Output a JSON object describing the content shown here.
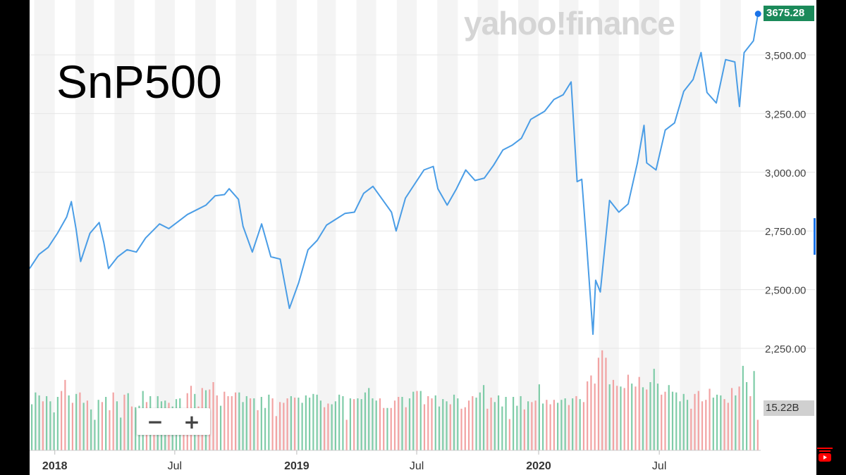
{
  "overlay_label": "SnP500",
  "watermark": "yahoo!finance",
  "zoom": {
    "minus": "−",
    "plus": "+"
  },
  "last_price_badge": "3675.28",
  "volume_badge": "15.22B",
  "colors": {
    "line": "#4a9de6",
    "vol_up": "#7fcca8",
    "vol_down": "#f2a3a3",
    "badge": "#1b8a5a",
    "band": "#f4f4f4"
  },
  "chart_data": {
    "type": "line",
    "series_name": "",
    "x_labels": [
      "2018",
      "Jul",
      "2019",
      "Jul",
      "2020",
      "Jul"
    ],
    "x_label_dates": [
      "2018-01-01",
      "2018-07-01",
      "2019-01-01",
      "2019-07-01",
      "2020-01-01",
      "2020-07-01"
    ],
    "y_ticks": [
      2250,
      2500,
      2750,
      3000,
      3250,
      3500
    ],
    "y_tick_labels": [
      "2,250.00",
      "2,500.00",
      "2,750.00",
      "3,000.00",
      "3,250.00",
      "3,500.00"
    ],
    "ylim": [
      2110,
      3700
    ],
    "x_range": [
      "2017-11-24",
      "2020-12-01"
    ],
    "grid": true,
    "series": [
      {
        "x": [
          "2017-11-24",
          "2017-12-08",
          "2017-12-22",
          "2018-01-05",
          "2018-01-19",
          "2018-01-26",
          "2018-02-02",
          "2018-02-09",
          "2018-02-23",
          "2018-03-09",
          "2018-03-16",
          "2018-03-23",
          "2018-04-06",
          "2018-04-20",
          "2018-05-04",
          "2018-05-18",
          "2018-06-08",
          "2018-06-22",
          "2018-07-06",
          "2018-07-20",
          "2018-08-03",
          "2018-08-17",
          "2018-08-31",
          "2018-09-14",
          "2018-09-21",
          "2018-10-05",
          "2018-10-12",
          "2018-10-26",
          "2018-11-09",
          "2018-11-23",
          "2018-12-07",
          "2018-12-21",
          "2019-01-04",
          "2019-01-18",
          "2019-02-01",
          "2019-02-15",
          "2019-03-01",
          "2019-03-15",
          "2019-03-29",
          "2019-04-12",
          "2019-04-26",
          "2019-05-10",
          "2019-05-24",
          "2019-05-31",
          "2019-06-14",
          "2019-06-28",
          "2019-07-12",
          "2019-07-26",
          "2019-08-02",
          "2019-08-16",
          "2019-08-30",
          "2019-09-13",
          "2019-09-27",
          "2019-10-11",
          "2019-10-25",
          "2019-11-08",
          "2019-11-22",
          "2019-12-06",
          "2019-12-20",
          "2020-01-10",
          "2020-01-24",
          "2020-02-07",
          "2020-02-19",
          "2020-02-28",
          "2020-03-06",
          "2020-03-13",
          "2020-03-23",
          "2020-03-27",
          "2020-04-03",
          "2020-04-17",
          "2020-05-01",
          "2020-05-15",
          "2020-05-29",
          "2020-06-08",
          "2020-06-12",
          "2020-06-26",
          "2020-07-10",
          "2020-07-24",
          "2020-08-07",
          "2020-08-21",
          "2020-09-02",
          "2020-09-11",
          "2020-09-25",
          "2020-10-09",
          "2020-10-23",
          "2020-10-30",
          "2020-11-06",
          "2020-11-20",
          "2020-11-27"
        ],
        "y": [
          2590,
          2650,
          2680,
          2740,
          2810,
          2875,
          2760,
          2620,
          2740,
          2786,
          2700,
          2590,
          2640,
          2670,
          2660,
          2720,
          2780,
          2760,
          2790,
          2820,
          2840,
          2860,
          2900,
          2905,
          2930,
          2885,
          2770,
          2660,
          2780,
          2640,
          2630,
          2420,
          2530,
          2670,
          2710,
          2775,
          2800,
          2825,
          2830,
          2910,
          2940,
          2885,
          2830,
          2750,
          2890,
          2950,
          3010,
          3025,
          2930,
          2860,
          2930,
          3010,
          2965,
          2975,
          3030,
          3095,
          3115,
          3145,
          3225,
          3260,
          3310,
          3330,
          3385,
          2960,
          2970,
          2710,
          2310,
          2540,
          2490,
          2880,
          2830,
          2865,
          3040,
          3200,
          3040,
          3010,
          3180,
          3210,
          3345,
          3395,
          3510,
          3340,
          3295,
          3480,
          3470,
          3280,
          3510,
          3560,
          3675
        ]
      }
    ],
    "volume": {
      "bars": [
        [
          1.1,
          1
        ],
        [
          1.26,
          1
        ],
        [
          1.22,
          1
        ],
        [
          1.14,
          0
        ],
        [
          1.21,
          1
        ],
        [
          1.14,
          1
        ],
        [
          0.99,
          1
        ],
        [
          1.2,
          1
        ],
        [
          1.28,
          0
        ],
        [
          1.43,
          0
        ],
        [
          1.22,
          1
        ],
        [
          1.12,
          0
        ],
        [
          1.24,
          1
        ],
        [
          1.26,
          0
        ],
        [
          1.12,
          1
        ],
        [
          1.15,
          0
        ],
        [
          1.03,
          1
        ],
        [
          0.89,
          1
        ],
        [
          1.16,
          1
        ],
        [
          1.13,
          0
        ],
        [
          1.2,
          1
        ],
        [
          1.02,
          0
        ],
        [
          1.26,
          0
        ],
        [
          1.14,
          1
        ],
        [
          0.92,
          1
        ],
        [
          1.23,
          0
        ],
        [
          1.25,
          1
        ],
        [
          1.07,
          0
        ],
        [
          1.06,
          1
        ],
        [
          1.08,
          1
        ],
        [
          1.28,
          1
        ],
        [
          1.13,
          0
        ],
        [
          1.21,
          1
        ],
        [
          0.94,
          0
        ],
        [
          1.21,
          1
        ],
        [
          1.14,
          1
        ],
        [
          1.15,
          1
        ],
        [
          1.12,
          0
        ],
        [
          1.07,
          1
        ],
        [
          1.17,
          1
        ],
        [
          1.18,
          1
        ],
        [
          0.88,
          0
        ],
        [
          1.25,
          0
        ],
        [
          1.35,
          0
        ],
        [
          1.24,
          1
        ],
        [
          1.07,
          0
        ],
        [
          1.32,
          0
        ],
        [
          1.29,
          1
        ],
        [
          1.3,
          0
        ],
        [
          1.4,
          0
        ],
        [
          1.22,
          0
        ],
        [
          1.08,
          1
        ],
        [
          1.27,
          0
        ],
        [
          1.21,
          0
        ],
        [
          1.21,
          0
        ],
        [
          1.26,
          0
        ],
        [
          1.26,
          1
        ],
        [
          1.13,
          1
        ],
        [
          1.21,
          1
        ],
        [
          1.18,
          0
        ],
        [
          1.18,
          1
        ],
        [
          1.02,
          0
        ],
        [
          1.2,
          1
        ],
        [
          1.05,
          1
        ],
        [
          1.23,
          1
        ],
        [
          1.18,
          0
        ],
        [
          0.94,
          0
        ],
        [
          1.13,
          0
        ],
        [
          1.12,
          0
        ],
        [
          1.18,
          0
        ],
        [
          1.21,
          1
        ],
        [
          1.19,
          0
        ],
        [
          1.19,
          1
        ],
        [
          1.12,
          1
        ],
        [
          1.22,
          1
        ],
        [
          1.19,
          1
        ],
        [
          1.24,
          1
        ],
        [
          1.23,
          1
        ],
        [
          1.15,
          1
        ],
        [
          1.06,
          0
        ],
        [
          1.11,
          0
        ],
        [
          1.1,
          1
        ],
        [
          1.14,
          1
        ],
        [
          1.23,
          1
        ],
        [
          1.21,
          1
        ],
        [
          0.89,
          0
        ],
        [
          1.18,
          1
        ],
        [
          1.17,
          0
        ],
        [
          1.18,
          1
        ],
        [
          1.17,
          1
        ],
        [
          1.26,
          1
        ],
        [
          1.32,
          1
        ],
        [
          1.18,
          1
        ],
        [
          1.15,
          1
        ],
        [
          1.18,
          0
        ],
        [
          1.05,
          0
        ],
        [
          1.05,
          1
        ],
        [
          1.05,
          0
        ],
        [
          1.15,
          0
        ],
        [
          1.2,
          0
        ],
        [
          1.2,
          1
        ],
        [
          1.06,
          0
        ],
        [
          1.18,
          1
        ],
        [
          1.27,
          1
        ],
        [
          1.28,
          0
        ],
        [
          1.28,
          1
        ],
        [
          1.1,
          0
        ],
        [
          1.21,
          0
        ],
        [
          1.18,
          0
        ],
        [
          1.22,
          1
        ],
        [
          1.07,
          1
        ],
        [
          1.17,
          1
        ],
        [
          1.14,
          1
        ],
        [
          1.1,
          0
        ],
        [
          1.23,
          1
        ],
        [
          1.18,
          1
        ],
        [
          1.04,
          0
        ],
        [
          1.06,
          0
        ],
        [
          1.15,
          0
        ],
        [
          1.21,
          0
        ],
        [
          1.19,
          1
        ],
        [
          1.26,
          1
        ],
        [
          1.36,
          1
        ],
        [
          1.04,
          0
        ],
        [
          1.19,
          0
        ],
        [
          1.13,
          1
        ],
        [
          1.22,
          1
        ],
        [
          1.07,
          1
        ],
        [
          1.2,
          1
        ],
        [
          0.9,
          0
        ],
        [
          1.2,
          1
        ],
        [
          1.08,
          1
        ],
        [
          1.21,
          1
        ],
        [
          1.03,
          0
        ],
        [
          1.14,
          1
        ],
        [
          1.13,
          0
        ],
        [
          1.15,
          0
        ],
        [
          1.37,
          1
        ],
        [
          1.11,
          1
        ],
        [
          1.16,
          0
        ],
        [
          1.1,
          0
        ],
        [
          1.16,
          0
        ],
        [
          1.12,
          1
        ],
        [
          1.16,
          1
        ],
        [
          1.18,
          1
        ],
        [
          1.09,
          0
        ],
        [
          1.18,
          1
        ],
        [
          1.21,
          0
        ],
        [
          1.17,
          1
        ],
        [
          1.13,
          0
        ],
        [
          1.41,
          0
        ],
        [
          1.49,
          0
        ],
        [
          1.38,
          0
        ],
        [
          1.73,
          0
        ],
        [
          1.83,
          0
        ],
        [
          1.73,
          0
        ],
        [
          1.37,
          1
        ],
        [
          1.43,
          0
        ],
        [
          1.35,
          0
        ],
        [
          1.34,
          1
        ],
        [
          1.32,
          0
        ],
        [
          1.5,
          0
        ],
        [
          1.38,
          1
        ],
        [
          1.34,
          0
        ],
        [
          1.47,
          0
        ],
        [
          1.33,
          1
        ],
        [
          1.3,
          0
        ],
        [
          1.4,
          1
        ],
        [
          1.58,
          1
        ],
        [
          1.38,
          1
        ],
        [
          1.23,
          0
        ],
        [
          1.27,
          0
        ],
        [
          1.36,
          1
        ],
        [
          1.27,
          1
        ],
        [
          1.26,
          1
        ],
        [
          1.14,
          1
        ],
        [
          1.24,
          1
        ],
        [
          1.16,
          1
        ],
        [
          1.04,
          0
        ],
        [
          1.24,
          0
        ],
        [
          1.28,
          0
        ],
        [
          1.14,
          0
        ],
        [
          1.16,
          0
        ],
        [
          1.31,
          0
        ],
        [
          1.19,
          1
        ],
        [
          1.23,
          1
        ],
        [
          1.22,
          1
        ],
        [
          1.17,
          0
        ],
        [
          1.12,
          0
        ],
        [
          1.32,
          0
        ],
        [
          1.22,
          1
        ],
        [
          1.34,
          0
        ],
        [
          1.62,
          1
        ],
        [
          1.4,
          1
        ],
        [
          1.21,
          0
        ],
        [
          1.55,
          1
        ],
        [
          0.89,
          0
        ]
      ],
      "last_value_label": "15.22B"
    }
  }
}
